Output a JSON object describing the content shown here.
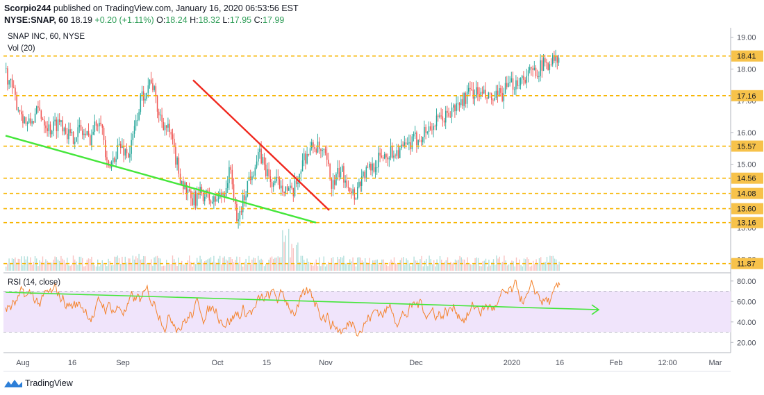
{
  "header": {
    "line1": "Scorpio244 published on TradingView.com, January 16, 2020 06:53:56 EST",
    "symbol": "NYSE:SNAP, 60",
    "last": "18.19",
    "change": "+0.20 (+1.11%)",
    "o_label": "O:",
    "o": "18.24",
    "h_label": "H:",
    "h": "18.32",
    "l_label": "L:",
    "l": "17.95",
    "c_label": "C:",
    "c": "17.99"
  },
  "pane": {
    "title": "SNAP INC, 60, NYSE",
    "vol_label": "Vol (20)",
    "rsi_label": "RSI (14, close)"
  },
  "footer": {
    "brand": "TradingView",
    "logo_icon": "tradingview-logo-icon"
  },
  "colors": {
    "up": "#26a69a",
    "down": "#ef5350",
    "level": "#f7b500",
    "level_box": "#f7c24a",
    "resistance": "#f0281e",
    "support": "#44e63a",
    "rsi_line": "#f4832d",
    "rsi_band": "#f0e4fb",
    "rsi_trend": "#44e63a"
  },
  "chart_data": [
    {
      "type": "candlestick",
      "title": "SNAP INC, 60, NYSE",
      "price_axis_ticks": [
        "19.00",
        "18.00",
        "17.00",
        "16.00",
        "15.00",
        "14.00",
        "13.00",
        "12.00"
      ],
      "ylim": [
        11.6,
        19.3
      ],
      "time_axis_ticks": [
        "Aug",
        "16",
        "Sep",
        "Oct",
        "15",
        "Nov",
        "Dec",
        "2020",
        "16",
        "Feb",
        "12:00",
        "Mar"
      ],
      "horizontal_levels": [
        18.41,
        17.16,
        15.57,
        14.56,
        14.08,
        13.6,
        13.16,
        11.87
      ],
      "price_path": [
        [
          0,
          17.9
        ],
        [
          0.03,
          16.9
        ],
        [
          0.06,
          16.2
        ],
        [
          0.09,
          16.7
        ],
        [
          0.12,
          16.1
        ],
        [
          0.15,
          16.4
        ],
        [
          0.18,
          15.8
        ],
        [
          0.2,
          16.1
        ],
        [
          0.23,
          15.8
        ],
        [
          0.26,
          16.6
        ],
        [
          0.28,
          14.7
        ],
        [
          0.31,
          15.6
        ],
        [
          0.34,
          15.3
        ],
        [
          0.37,
          17.0
        ],
        [
          0.4,
          17.7
        ],
        [
          0.42,
          16.6
        ],
        [
          0.45,
          16.0
        ],
        [
          0.48,
          14.6
        ],
        [
          0.51,
          13.8
        ],
        [
          0.54,
          14.1
        ],
        [
          0.57,
          13.8
        ],
        [
          0.6,
          14.1
        ],
        [
          0.62,
          14.9
        ],
        [
          0.635,
          13.1
        ],
        [
          0.65,
          13.7
        ],
        [
          0.67,
          14.6
        ],
        [
          0.7,
          15.3
        ],
        [
          0.73,
          14.4
        ],
        [
          0.76,
          14.4
        ],
        [
          0.79,
          14.0
        ],
        [
          0.82,
          15.2
        ],
        [
          0.85,
          15.6
        ],
        [
          0.88,
          15.2
        ],
        [
          0.9,
          14.3
        ],
        [
          0.92,
          14.8
        ],
        [
          0.94,
          14.5
        ],
        [
          0.96,
          14.0
        ],
        [
          0.98,
          14.6
        ]
      ],
      "price_path_part2": [
        [
          0,
          14.6
        ],
        [
          0.06,
          15.3
        ],
        [
          0.12,
          15.5
        ],
        [
          0.18,
          16.1
        ],
        [
          0.24,
          16.6
        ],
        [
          0.3,
          17.3
        ],
        [
          0.36,
          17.0
        ],
        [
          0.42,
          17.6
        ],
        [
          0.48,
          18.0
        ],
        [
          0.52,
          18.3
        ],
        [
          0.54,
          18.2
        ]
      ],
      "trendlines": [
        {
          "name": "resistance",
          "from": [
            "Sep",
            17.65
          ],
          "to": [
            "Nov",
            13.55
          ]
        },
        {
          "name": "support",
          "from": [
            "Aug",
            15.9
          ],
          "to": [
            "Nov",
            13.16
          ]
        }
      ]
    },
    {
      "type": "line",
      "title": "RSI (14, close)",
      "axis_ticks": [
        "80.00",
        "60.00",
        "40.00",
        "20.00"
      ],
      "ylim": [
        10,
        88
      ],
      "band": [
        30,
        70
      ],
      "trendline": {
        "from": 69,
        "to": 52
      }
    }
  ]
}
